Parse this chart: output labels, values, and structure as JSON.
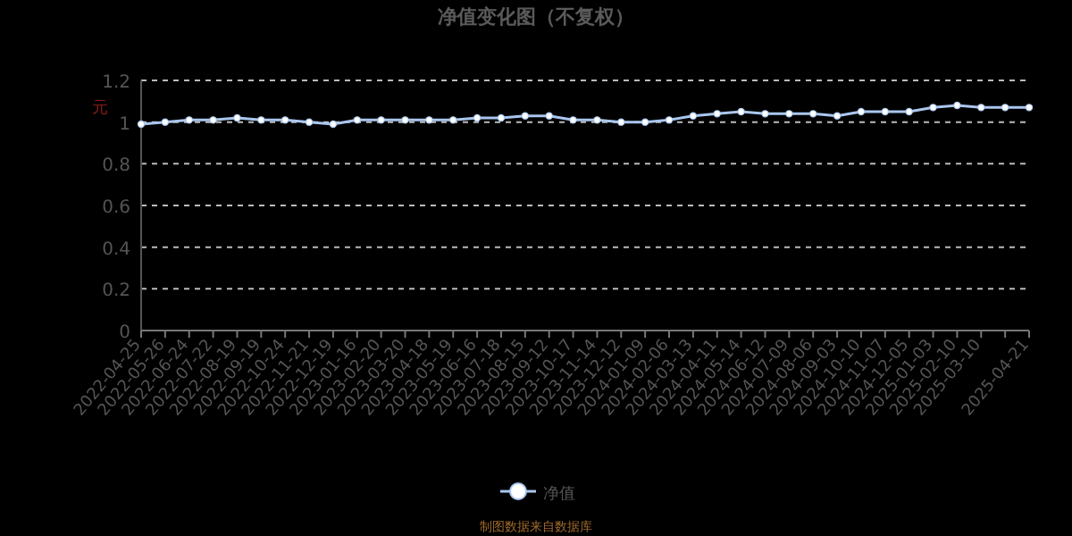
{
  "chart_data": {
    "type": "line",
    "title": "净值变化图（不复权）",
    "ylabel": "元",
    "categories": [
      "2022-04-25",
      "2022-05-26",
      "2022-06-24",
      "2022-07-22",
      "2022-08-19",
      "2022-09-19",
      "2022-10-24",
      "2022-11-21",
      "2022-12-19",
      "2023-01-16",
      "2023-02-20",
      "2023-03-20",
      "2023-04-18",
      "2023-05-19",
      "2023-06-16",
      "2023-07-18",
      "2023-08-15",
      "2023-09-12",
      "2023-10-17",
      "2023-11-14",
      "2023-12-12",
      "2024-01-09",
      "2024-02-06",
      "2024-03-13",
      "2024-04-11",
      "2024-05-14",
      "2024-06-12",
      "2024-07-09",
      "2024-08-06",
      "2024-09-03",
      "2024-10-10",
      "2024-11-07",
      "2024-12-05",
      "2025-01-03",
      "2025-02-10",
      "2025-03-10",
      null,
      "2025-04-21"
    ],
    "series": [
      {
        "name": "净值",
        "color": "#a9c6ee",
        "values": [
          0.99,
          1.0,
          1.01,
          1.01,
          1.02,
          1.01,
          1.01,
          1.0,
          0.99,
          1.01,
          1.01,
          1.01,
          1.01,
          1.01,
          1.02,
          1.02,
          1.03,
          1.03,
          1.01,
          1.01,
          1.0,
          1.0,
          1.01,
          1.03,
          1.04,
          1.05,
          1.04,
          1.04,
          1.04,
          1.03,
          1.05,
          1.05,
          1.05,
          1.07,
          1.08,
          1.07,
          1.07,
          1.07
        ]
      }
    ],
    "ylim": [
      0,
      1.2
    ],
    "yticks": [
      0,
      0.2,
      0.4,
      0.6,
      0.8,
      1,
      1.2
    ],
    "grid": "y",
    "legend": "bottom",
    "marker": "circle",
    "annotations": [
      "制图数据来自数据库"
    ]
  }
}
